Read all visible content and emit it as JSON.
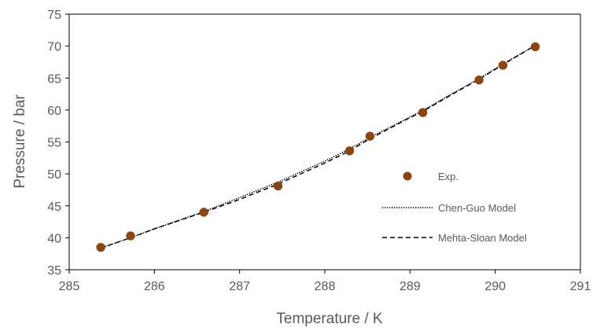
{
  "chart_data": {
    "type": "scatter",
    "title": "",
    "xlabel": "Temperature / K",
    "ylabel": "Pressure / bar",
    "xlim": [
      285,
      291
    ],
    "ylim": [
      35,
      75
    ],
    "x_ticks": [
      285,
      286,
      287,
      288,
      289,
      290,
      291
    ],
    "y_ticks": [
      35,
      40,
      45,
      50,
      55,
      60,
      65,
      70,
      75
    ],
    "x_tick_labels": [
      "285",
      "286",
      "287",
      "288",
      "289",
      "290",
      "291"
    ],
    "y_tick_labels": [
      "35",
      "40",
      "45",
      "50",
      "55",
      "60",
      "65",
      "70",
      "75"
    ],
    "grid": false,
    "legend_position": "right",
    "series": [
      {
        "name": "Exp.",
        "kind": "scatter",
        "color": "#8B4513",
        "x": [
          285.37,
          285.72,
          286.58,
          287.45,
          288.29,
          288.53,
          289.15,
          289.81,
          290.09,
          290.47
        ],
        "y": [
          38.5,
          40.3,
          44.0,
          48.1,
          53.6,
          55.9,
          59.6,
          64.7,
          67.0,
          69.9
        ]
      },
      {
        "name": "Chen-Guo Model",
        "kind": "line",
        "style": "dotted",
        "color": "#000000",
        "x": [
          285.37,
          285.72,
          286.0,
          286.58,
          287.0,
          287.45,
          288.0,
          288.29,
          288.53,
          289.0,
          289.15,
          289.5,
          289.81,
          290.09,
          290.47
        ],
        "y": [
          38.4,
          40.0,
          41.4,
          44.1,
          46.3,
          48.7,
          52.0,
          53.9,
          55.7,
          58.9,
          59.9,
          62.6,
          64.9,
          67.2,
          70.1
        ]
      },
      {
        "name": "Mehta-Sloan Model",
        "kind": "line",
        "style": "dashed",
        "color": "#000000",
        "x": [
          285.37,
          285.72,
          286.0,
          286.58,
          287.0,
          287.45,
          288.0,
          288.29,
          288.53,
          289.0,
          289.15,
          289.5,
          289.81,
          290.09,
          290.47
        ],
        "y": [
          38.4,
          40.0,
          41.4,
          44.0,
          46.0,
          48.4,
          51.7,
          53.6,
          55.5,
          58.8,
          59.8,
          62.5,
          64.8,
          67.1,
          70.1
        ]
      }
    ]
  }
}
